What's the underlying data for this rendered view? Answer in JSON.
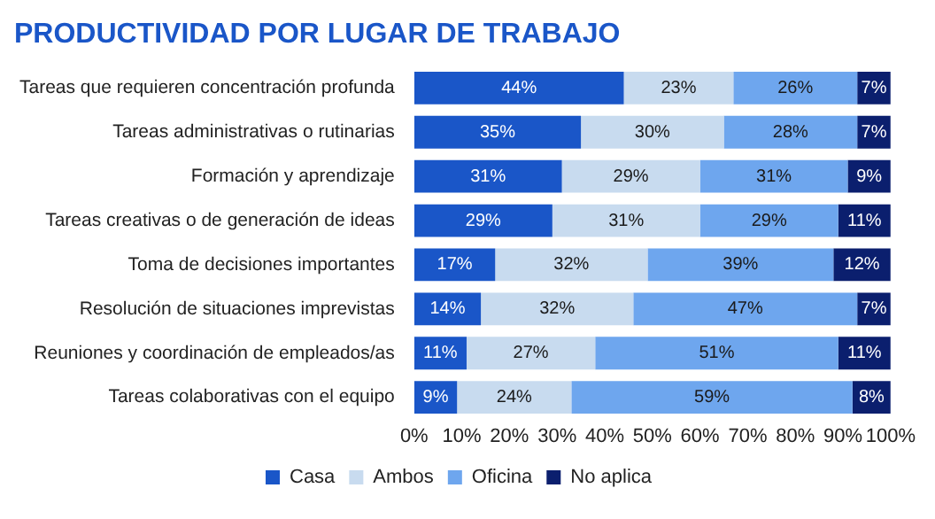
{
  "chart_data": {
    "type": "bar",
    "orientation": "horizontal",
    "stacked": true,
    "title": "PRODUCTIVIDAD POR LUGAR DE TRABAJO",
    "categories": [
      "Tareas que requieren concentración profunda",
      "Tareas administrativas o rutinarias",
      "Formación y aprendizaje",
      "Tareas creativas o de generación de ideas",
      "Toma de decisiones importantes",
      "Resolución de situaciones imprevistas",
      "Reuniones y coordinación de empleados/as",
      "Tareas colaborativas con el equipo"
    ],
    "series": [
      {
        "name": "Casa",
        "color": "#1a56c8",
        "values": [
          44,
          35,
          31,
          29,
          17,
          14,
          11,
          9
        ],
        "value_labels": [
          "44%",
          "35%",
          "31%",
          "29%",
          "17%",
          "14%",
          "11%",
          "9%"
        ]
      },
      {
        "name": "Ambos",
        "color": "#c8dbef",
        "values": [
          23,
          30,
          29,
          31,
          32,
          32,
          27,
          24
        ],
        "value_labels": [
          "23%",
          "30%",
          "29%",
          "31%",
          "32%",
          "32%",
          "27%",
          "24%"
        ]
      },
      {
        "name": "Oficina",
        "color": "#6ea6ee",
        "values": [
          26,
          28,
          31,
          29,
          39,
          47,
          51,
          59
        ],
        "value_labels": [
          "26%",
          "28%",
          "31%",
          "29%",
          "39%",
          "47%",
          "51%",
          "59%"
        ]
      },
      {
        "name": "No aplica",
        "color": "#0b1f6e",
        "values": [
          7,
          7,
          9,
          11,
          12,
          7,
          11,
          8
        ],
        "value_labels": [
          "7%",
          "7%",
          "9%",
          "11%",
          "12%",
          "7%",
          "11%",
          "8%"
        ]
      }
    ],
    "xlim": [
      0,
      100
    ],
    "xticks": [
      {
        "value": 0,
        "label": "0%"
      },
      {
        "value": 10,
        "label": "10%"
      },
      {
        "value": 20,
        "label": "20%"
      },
      {
        "value": 30,
        "label": "30%"
      },
      {
        "value": 40,
        "label": "40%"
      },
      {
        "value": 50,
        "label": "50%"
      },
      {
        "value": 60,
        "label": "60%"
      },
      {
        "value": 70,
        "label": "70%"
      },
      {
        "value": 80,
        "label": "80%"
      },
      {
        "value": 90,
        "label": "90%"
      },
      {
        "value": 100,
        "label": "100%"
      }
    ],
    "legend": "bottom"
  }
}
